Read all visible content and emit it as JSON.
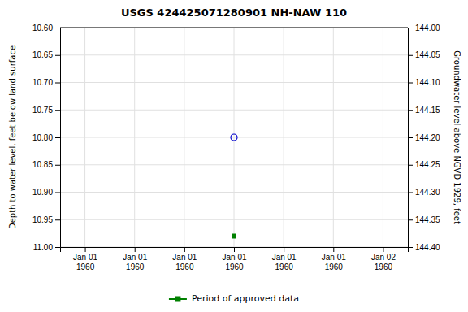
{
  "chart_data": {
    "type": "scatter",
    "title": "USGS 424425071280901 NH-NAW  110",
    "y_label": "Depth to water level, feet below land surface",
    "y2_label": "Groundwater level above NGVD 1929, feet",
    "categories": [
      "Jan 01\n1960",
      "Jan 01\n1960",
      "Jan 01\n1960",
      "Jan 01\n1960",
      "Jan 01\n1960",
      "Jan 01\n1960",
      "Jan 02\n1960"
    ],
    "ylim": [
      11.0,
      10.6
    ],
    "yticks": [
      {
        "value": 10.6,
        "label": "10.60"
      },
      {
        "value": 10.65,
        "label": "10.65"
      },
      {
        "value": 10.7,
        "label": "10.70"
      },
      {
        "value": 10.75,
        "label": "10.75"
      },
      {
        "value": 10.8,
        "label": "10.80"
      },
      {
        "value": 10.85,
        "label": "10.85"
      },
      {
        "value": 10.9,
        "label": "10.90"
      },
      {
        "value": 10.95,
        "label": "10.95"
      },
      {
        "value": 11.0,
        "label": "11.00"
      }
    ],
    "y2lim": [
      144.4,
      144.0
    ],
    "y2ticks": [
      {
        "value": 144.0,
        "label": "144.00"
      },
      {
        "value": 144.05,
        "label": "144.05"
      },
      {
        "value": 144.1,
        "label": "144.10"
      },
      {
        "value": 144.15,
        "label": "144.15"
      },
      {
        "value": 144.2,
        "label": "144.20"
      },
      {
        "value": 144.25,
        "label": "144.25"
      },
      {
        "value": 144.3,
        "label": "144.30"
      },
      {
        "value": 144.35,
        "label": "144.35"
      },
      {
        "value": 144.4,
        "label": "144.40"
      }
    ],
    "grid": true,
    "legend": "bottom",
    "series": [
      {
        "color": "#0000cc",
        "marker": "circle",
        "values": [
          null,
          null,
          null,
          10.8,
          null,
          null,
          null
        ]
      },
      {
        "name": "Period of approved data",
        "color": "#008000",
        "marker": "square",
        "values": [
          null,
          null,
          null,
          10.98,
          null,
          null,
          null
        ]
      }
    ]
  }
}
